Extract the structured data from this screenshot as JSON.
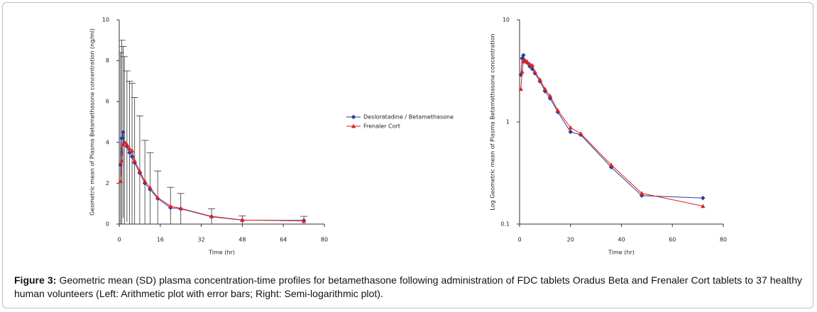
{
  "chart_data": [
    {
      "type": "line",
      "log": false,
      "x_label": "Time (hr)",
      "y_label": "Geometric mean of Plasma Betamethasone concentration (ng/ml)",
      "x": [
        0.5,
        1,
        1.5,
        2,
        3,
        4,
        5,
        6,
        8,
        10,
        12,
        15,
        20,
        24,
        36,
        48,
        72
      ],
      "xlim": [
        0,
        80
      ],
      "xticks": [
        0,
        16,
        32,
        48,
        64,
        80
      ],
      "ylim": [
        0,
        10
      ],
      "yticks": [
        0,
        2,
        4,
        6,
        8,
        10
      ],
      "series": [
        {
          "name": "Desloratadine / Betamethasone",
          "color": "#2b3a9b",
          "marker": "diamond",
          "values": [
            2.9,
            4.2,
            4.5,
            4.0,
            3.8,
            3.5,
            3.3,
            3.0,
            2.5,
            2.0,
            1.7,
            1.25,
            0.8,
            0.75,
            0.36,
            0.19,
            0.18
          ],
          "errors": [
            5.5,
            4.8,
            4.2,
            4.2,
            3.7,
            3.5,
            3.6,
            3.2,
            2.8,
            2.1,
            1.8,
            1.35,
            1.0,
            0.75,
            0.39,
            0.21,
            0.2
          ]
        },
        {
          "name": "Frenaler Cort",
          "color": "#e02020",
          "marker": "triangle",
          "values": [
            2.1,
            3.1,
            3.9,
            4.0,
            3.9,
            3.7,
            3.6,
            3.1,
            2.6,
            2.1,
            1.8,
            1.3,
            0.88,
            0.77,
            0.38,
            0.2,
            0.15
          ]
        }
      ]
    },
    {
      "type": "line",
      "log": true,
      "x_label": "Time (hr)",
      "y_label": "Log Geometric mean of Plasma Betamethasone concentration",
      "x": [
        0.5,
        1,
        1.5,
        2,
        3,
        4,
        5,
        6,
        8,
        10,
        12,
        15,
        20,
        24,
        36,
        48,
        72
      ],
      "xlim": [
        0,
        80
      ],
      "xticks": [
        0,
        20,
        40,
        60,
        80
      ],
      "ylim": [
        0.1,
        10
      ],
      "yticks": [
        {
          "value": 0.1,
          "label": "0.1"
        },
        1,
        10
      ],
      "series": [
        {
          "name": "Desloratadine / Betamethasone",
          "color": "#2b3a9b",
          "marker": "diamond",
          "values": [
            2.9,
            4.2,
            4.5,
            4.0,
            3.8,
            3.5,
            3.3,
            3.0,
            2.5,
            2.0,
            1.7,
            1.25,
            0.8,
            0.75,
            0.36,
            0.19,
            0.18
          ]
        },
        {
          "name": "Frenaler Cort",
          "color": "#e02020",
          "marker": "triangle",
          "values": [
            2.1,
            3.1,
            3.9,
            4.0,
            3.9,
            3.7,
            3.6,
            3.1,
            2.6,
            2.1,
            1.8,
            1.3,
            0.88,
            0.77,
            0.38,
            0.2,
            0.15
          ]
        }
      ]
    }
  ],
  "caption": {
    "label": "Figure 3:",
    "text": "Geometric mean (SD) plasma concentration-time profiles for betamethasone following administration of FDC tablets Oradus Beta and Frenaler Cort tablets to 37 healthy human volunteers (Left: Arithmetic plot with error bars; Right: Semi-logarithmic plot)."
  }
}
